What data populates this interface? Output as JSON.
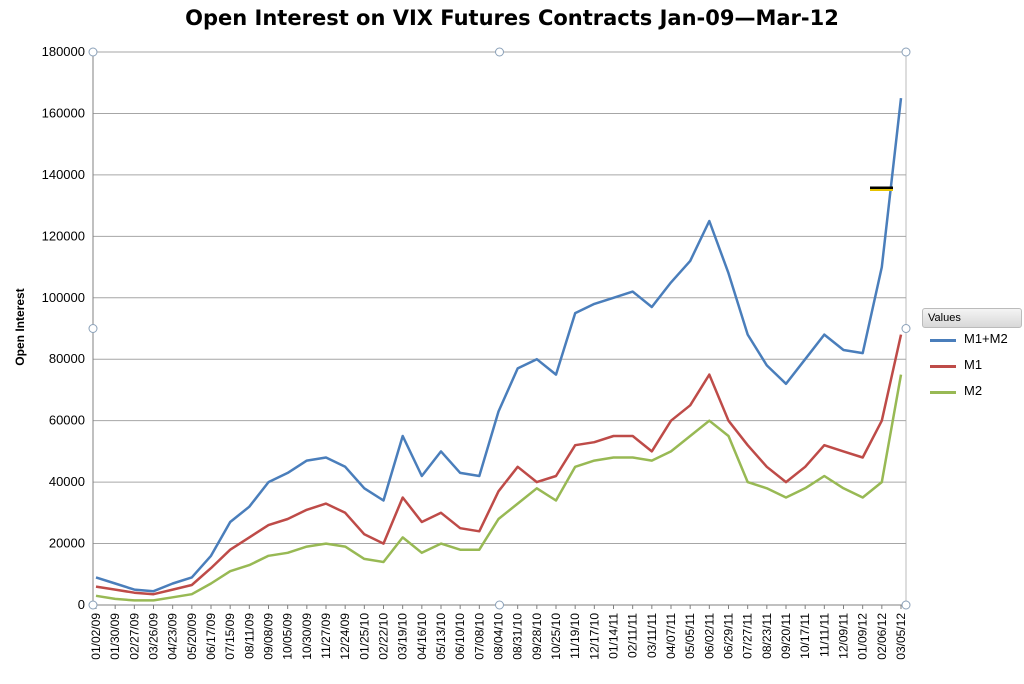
{
  "chart_data": {
    "type": "line",
    "title": "Open Interest on VIX Futures Contracts Jan-09—Mar-12",
    "xlabel": "",
    "ylabel": "Open Interest",
    "ylim": [
      0,
      180000
    ],
    "y_ticks": [
      "0",
      "20000",
      "40000",
      "60000",
      "80000",
      "100000",
      "120000",
      "140000",
      "160000",
      "180000"
    ],
    "x_tick_labels": [
      "01/02/09",
      "01/30/09",
      "02/27/09",
      "03/26/09",
      "04/23/09",
      "05/20/09",
      "06/17/09",
      "07/15/09",
      "08/11/09",
      "09/08/09",
      "10/05/09",
      "10/30/09",
      "11/27/09",
      "12/24/09",
      "01/25/10",
      "02/22/10",
      "03/19/10",
      "04/16/10",
      "05/13/10",
      "06/10/10",
      "07/08/10",
      "08/04/10",
      "08/31/10",
      "09/28/10",
      "10/25/10",
      "11/19/10",
      "12/17/10",
      "01/14/11",
      "02/11/11",
      "03/11/11",
      "04/07/11",
      "05/05/11",
      "06/02/11",
      "06/29/11",
      "07/27/11",
      "08/23/11",
      "09/20/11",
      "10/17/11",
      "11/11/11",
      "12/09/11",
      "01/09/12",
      "02/06/12",
      "03/05/12"
    ],
    "grid": true,
    "legend": {
      "title": "Values",
      "position": "right"
    },
    "series": [
      {
        "name": "M1+M2",
        "color": "#4a7ebb",
        "values": [
          9000,
          7000,
          5000,
          4500,
          7000,
          9000,
          16000,
          27000,
          32000,
          40000,
          43000,
          47000,
          48000,
          45000,
          38000,
          34000,
          55000,
          42000,
          50000,
          43000,
          42000,
          63000,
          77000,
          80000,
          75000,
          95000,
          98000,
          100000,
          102000,
          97000,
          105000,
          112000,
          125000,
          108000,
          88000,
          78000,
          72000,
          80000,
          88000,
          83000,
          82000,
          110000,
          165000
        ]
      },
      {
        "name": "M1",
        "color": "#be4b48",
        "values": [
          6000,
          5000,
          4000,
          3500,
          5000,
          6500,
          12000,
          18000,
          22000,
          26000,
          28000,
          31000,
          33000,
          30000,
          23000,
          20000,
          35000,
          27000,
          30000,
          25000,
          24000,
          37000,
          45000,
          40000,
          42000,
          52000,
          53000,
          55000,
          55000,
          50000,
          60000,
          65000,
          75000,
          60000,
          52000,
          45000,
          40000,
          45000,
          52000,
          50000,
          48000,
          60000,
          88000
        ]
      },
      {
        "name": "M2",
        "color": "#98b954",
        "values": [
          3000,
          2000,
          1500,
          1500,
          2500,
          3500,
          7000,
          11000,
          13000,
          16000,
          17000,
          19000,
          20000,
          19000,
          15000,
          14000,
          22000,
          17000,
          20000,
          18000,
          18000,
          28000,
          33000,
          38000,
          34000,
          45000,
          47000,
          48000,
          48000,
          47000,
          50000,
          55000,
          60000,
          55000,
          40000,
          38000,
          35000,
          38000,
          42000,
          38000,
          35000,
          40000,
          75000
        ]
      }
    ]
  }
}
